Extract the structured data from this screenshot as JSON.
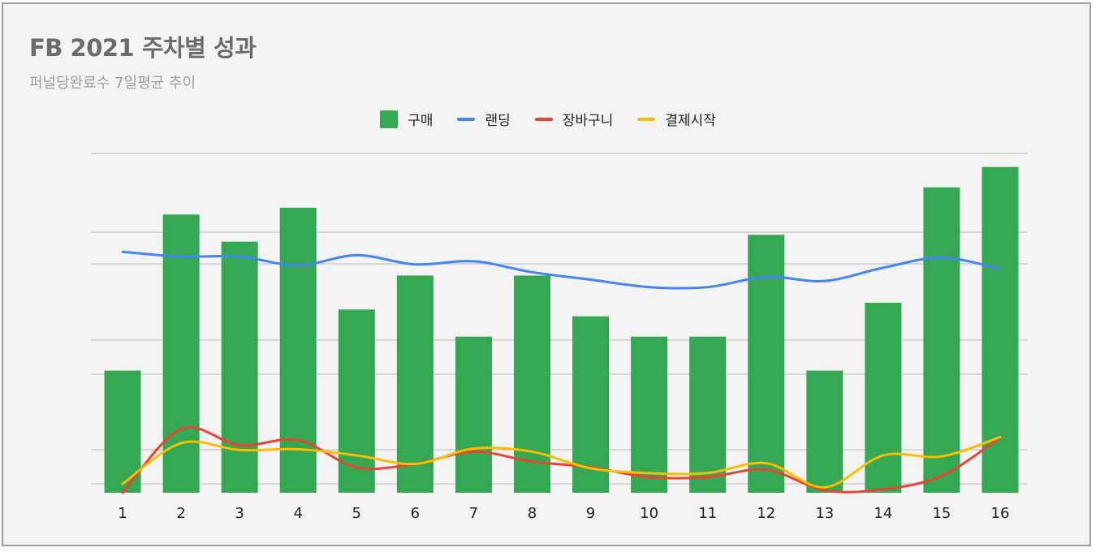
{
  "title": "FB 2021 주차별 성과",
  "subtitle": "퍼널당완료수 7일평균 추이",
  "colors": {
    "grid": "#cccccc",
    "purchase": "#34a853",
    "landing": "#4285f4",
    "cart": "#ea4335",
    "checkout": "#fbbc04"
  },
  "chart_data": {
    "type": "bar",
    "categories": [
      "1",
      "2",
      "3",
      "4",
      "5",
      "6",
      "7",
      "8",
      "9",
      "10",
      "11",
      "12",
      "13",
      "14",
      "15",
      "16"
    ],
    "legend_position": "top",
    "grid": true,
    "ylim": [
      0,
      100
    ],
    "series": [
      {
        "name": "구매",
        "kind": "bar",
        "color": "#34a853",
        "values": [
          36,
          82,
          74,
          84,
          54,
          64,
          46,
          64,
          52,
          46,
          46,
          76,
          36,
          56,
          90,
          96
        ]
      },
      {
        "name": "랜딩",
        "kind": "line",
        "color": "#4285f4",
        "values": [
          71,
          69.6,
          69.6,
          67,
          70,
          67.3,
          68.2,
          65,
          62.8,
          60.6,
          60.6,
          63.6,
          62.4,
          66.3,
          69.3,
          66
        ]
      },
      {
        "name": "장바구니",
        "kind": "line",
        "color": "#ea4335",
        "values": [
          0,
          18.8,
          14,
          15.5,
          7.5,
          8.5,
          12.1,
          9.2,
          7.5,
          4.6,
          4.6,
          6.8,
          0.7,
          1,
          5,
          16.2
        ]
      },
      {
        "name": "결제시작",
        "kind": "line",
        "color": "#fbbc04",
        "values": [
          2.6,
          14.6,
          12.6,
          12.8,
          11,
          8.5,
          13,
          12.1,
          7.2,
          5.8,
          5.8,
          8.7,
          1.6,
          11,
          10.7,
          16.4
        ]
      }
    ]
  }
}
